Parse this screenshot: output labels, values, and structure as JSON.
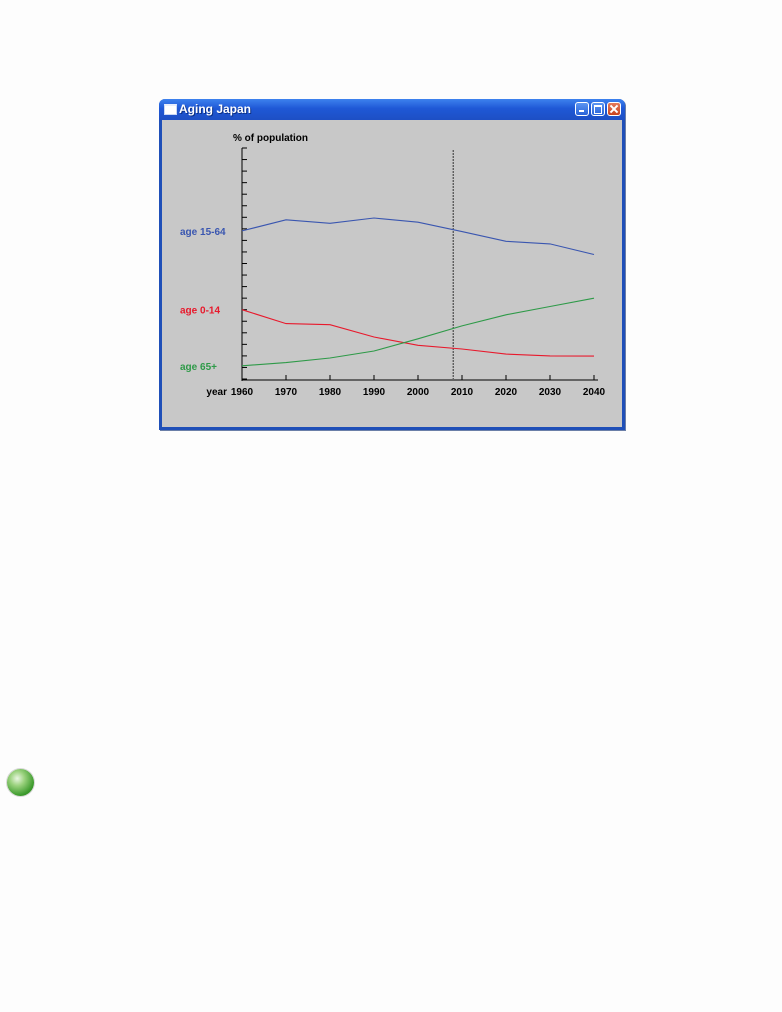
{
  "window": {
    "title": "Aging Japan"
  },
  "chart_data": {
    "type": "line",
    "ylabel": "% of population",
    "xlabel": "year",
    "x": [
      1960,
      1970,
      1980,
      1990,
      2000,
      2010,
      2020,
      2030,
      2040
    ],
    "xlim": [
      1960,
      2040
    ],
    "ylim": [
      0,
      100
    ],
    "yticks": [
      0,
      5,
      10,
      15,
      20,
      25,
      30,
      35,
      40,
      45,
      50,
      55,
      60,
      65,
      70,
      75,
      80,
      85,
      90,
      95,
      100
    ],
    "marker": {
      "x": 2008
    },
    "series": [
      {
        "name": "age 15-64",
        "color": "#3a56b0",
        "values": [
          64.1,
          68.9,
          67.4,
          69.7,
          67.9,
          63.8,
          59.6,
          58.5,
          53.9
        ]
      },
      {
        "name": "age 0-14",
        "color": "#e8192c",
        "values": [
          30.0,
          24.0,
          23.5,
          18.2,
          14.6,
          13.0,
          10.8,
          10.0,
          9.9
        ]
      },
      {
        "name": "age 65+",
        "color": "#2e9a48",
        "values": [
          5.7,
          7.1,
          9.1,
          12.1,
          17.4,
          23.0,
          27.8,
          31.4,
          35.0
        ]
      }
    ]
  }
}
